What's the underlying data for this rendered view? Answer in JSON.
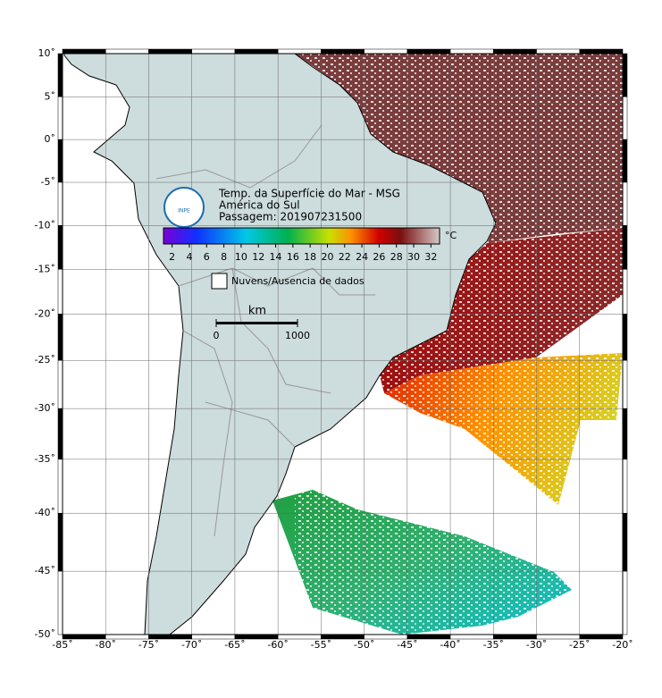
{
  "header": {
    "title": "Temp. da Superfície do Mar - MSG",
    "region": "América do Sul",
    "pass": "Passagem: 201907231500",
    "logo": "INPE"
  },
  "colorbar": {
    "unit": "°C",
    "range": [
      1,
      33
    ],
    "ticks": [
      2,
      4,
      6,
      8,
      10,
      12,
      14,
      16,
      18,
      20,
      22,
      24,
      26,
      28,
      30,
      32
    ]
  },
  "legend": {
    "label": "Nuvens/Ausencia de dados"
  },
  "scalebar": {
    "unit": "km",
    "ticks": [
      0,
      1000
    ]
  },
  "map": {
    "xlim": [
      -85,
      -20
    ],
    "ylim": [
      -50,
      10
    ],
    "grid": true,
    "xticks": [
      {
        "value": -85,
        "label": "-85˚"
      },
      {
        "value": -80,
        "label": "-80˚"
      },
      {
        "value": -75,
        "label": "-75˚"
      },
      {
        "value": -70,
        "label": "-70˚"
      },
      {
        "value": -65,
        "label": "-65˚"
      },
      {
        "value": -60,
        "label": "-60˚"
      },
      {
        "value": -55,
        "label": "-55˚"
      },
      {
        "value": -50,
        "label": "-50˚"
      },
      {
        "value": -45,
        "label": "-45˚"
      },
      {
        "value": -40,
        "label": "-40˚"
      },
      {
        "value": -35,
        "label": "-35˚"
      },
      {
        "value": -30,
        "label": "-30˚"
      },
      {
        "value": -25,
        "label": "-25˚"
      },
      {
        "value": -20,
        "label": "-20˚"
      }
    ],
    "yticks": [
      {
        "value": 10,
        "label": "10˚"
      },
      {
        "value": 5,
        "label": "5˚"
      },
      {
        "value": 0,
        "label": "0˚"
      },
      {
        "value": -5,
        "label": "-5˚"
      },
      {
        "value": -10,
        "label": "-10˚"
      },
      {
        "value": -15,
        "label": "-15˚"
      },
      {
        "value": -20,
        "label": "-20˚"
      },
      {
        "value": -25,
        "label": "-25˚"
      },
      {
        "value": -30,
        "label": "-30˚"
      },
      {
        "value": -35,
        "label": "-35˚"
      },
      {
        "value": -40,
        "label": "-40˚"
      },
      {
        "value": -45,
        "label": "-45˚"
      },
      {
        "value": -50,
        "label": "-50˚"
      }
    ]
  }
}
